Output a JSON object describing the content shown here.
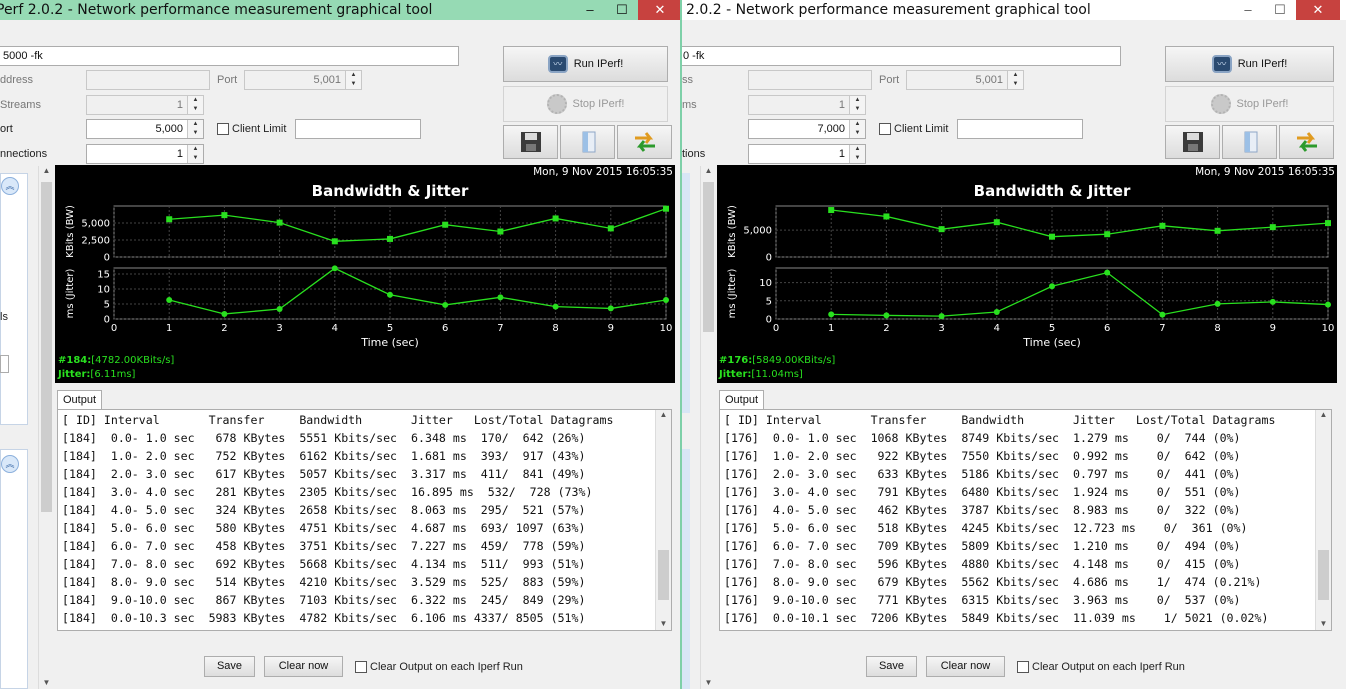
{
  "colors": {
    "plot_line": "#29e01f",
    "plot_bg": "#000000",
    "grid": "#444444"
  },
  "windows": [
    {
      "title": "Perf 2.0.2 - Network performance measurement graphical tool",
      "window_buttons": {
        "minimize": "–",
        "maximize": "☐",
        "close": "✕"
      },
      "command_line": "5000 -fk",
      "address_label": "ddress",
      "port_label": "Port",
      "port_value": "5,001",
      "streams_label": "Streams",
      "streams_value": "1",
      "listen_port_label": "ort",
      "listen_port_value": "5,000",
      "client_limit_label": "Client Limit",
      "connections_label": "nnections",
      "connections_value": "1",
      "run_label": "Run IPerf!",
      "stop_label": "Stop IPerf!",
      "timestamp": "Mon, 9 Nov 2015 16:05:35",
      "side_label": "ls",
      "readout_id_key": "#184:",
      "readout_id_val": "[4782.00KBits/s]",
      "readout_jitter_key": "Jitter:",
      "readout_jitter_val": "[6.11ms]",
      "output_tab": "Output",
      "output_lines": [
        "[ ID] Interval       Transfer     Bandwidth       Jitter   Lost/Total Datagrams",
        "[184]  0.0- 1.0 sec   678 KBytes  5551 Kbits/sec  6.348 ms  170/  642 (26%)",
        "[184]  1.0- 2.0 sec   752 KBytes  6162 Kbits/sec  1.681 ms  393/  917 (43%)",
        "[184]  2.0- 3.0 sec   617 KBytes  5057 Kbits/sec  3.317 ms  411/  841 (49%)",
        "[184]  3.0- 4.0 sec   281 KBytes  2305 Kbits/sec  16.895 ms  532/  728 (73%)",
        "[184]  4.0- 5.0 sec   324 KBytes  2658 Kbits/sec  8.063 ms  295/  521 (57%)",
        "[184]  5.0- 6.0 sec   580 KBytes  4751 Kbits/sec  4.687 ms  693/ 1097 (63%)",
        "[184]  6.0- 7.0 sec   458 KBytes  3751 Kbits/sec  7.227 ms  459/  778 (59%)",
        "[184]  7.0- 8.0 sec   692 KBytes  5668 Kbits/sec  4.134 ms  511/  993 (51%)",
        "[184]  8.0- 9.0 sec   514 KBytes  4210 Kbits/sec  3.529 ms  525/  883 (59%)",
        "[184]  9.0-10.0 sec   867 KBytes  7103 Kbits/sec  6.322 ms  245/  849 (29%)",
        "[184]  0.0-10.3 sec  5983 KBytes  4782 Kbits/sec  6.106 ms 4337/ 8505 (51%)"
      ],
      "save_label": "Save",
      "clear_label": "Clear now",
      "clear_each_label": "Clear Output on each Iperf Run"
    },
    {
      "title": "2.0.2 - Network performance measurement graphical tool",
      "window_buttons": {
        "minimize": "–",
        "maximize": "☐",
        "close": "✕"
      },
      "command_line": "0 -fk",
      "address_label": "ss",
      "port_label": "Port",
      "port_value": "5,001",
      "streams_label": "ms",
      "streams_value": "1",
      "listen_port_label": "",
      "listen_port_value": "7,000",
      "client_limit_label": "Client Limit",
      "connections_label": "tions",
      "connections_value": "1",
      "run_label": "Run IPerf!",
      "stop_label": "Stop IPerf!",
      "timestamp": "Mon, 9 Nov 2015 16:05:35",
      "side_label": "",
      "readout_id_key": "#176:",
      "readout_id_val": "[5849.00KBits/s]",
      "readout_jitter_key": "Jitter:",
      "readout_jitter_val": "[11.04ms]",
      "output_tab": "Output",
      "output_lines": [
        "[ ID] Interval       Transfer     Bandwidth       Jitter   Lost/Total Datagrams",
        "[176]  0.0- 1.0 sec  1068 KBytes  8749 Kbits/sec  1.279 ms    0/  744 (0%)",
        "[176]  1.0- 2.0 sec   922 KBytes  7550 Kbits/sec  0.992 ms    0/  642 (0%)",
        "[176]  2.0- 3.0 sec   633 KBytes  5186 Kbits/sec  0.797 ms    0/  441 (0%)",
        "[176]  3.0- 4.0 sec   791 KBytes  6480 Kbits/sec  1.924 ms    0/  551 (0%)",
        "[176]  4.0- 5.0 sec   462 KBytes  3787 Kbits/sec  8.983 ms    0/  322 (0%)",
        "[176]  5.0- 6.0 sec   518 KBytes  4245 Kbits/sec  12.723 ms    0/  361 (0%)",
        "[176]  6.0- 7.0 sec   709 KBytes  5809 Kbits/sec  1.210 ms    0/  494 (0%)",
        "[176]  7.0- 8.0 sec   596 KBytes  4880 Kbits/sec  4.148 ms    0/  415 (0%)",
        "[176]  8.0- 9.0 sec   679 KBytes  5562 Kbits/sec  4.686 ms    1/  474 (0.21%)",
        "[176]  9.0-10.0 sec   771 KBytes  6315 Kbits/sec  3.963 ms    0/  537 (0%)",
        "[176]  0.0-10.1 sec  7206 KBytes  5849 Kbits/sec  11.039 ms    1/ 5021 (0.02%)"
      ],
      "save_label": "Save",
      "clear_label": "Clear now",
      "clear_each_label": "Clear Output on each Iperf Run"
    }
  ],
  "chart_data": [
    {
      "type": "line",
      "title": "Bandwidth & Jitter",
      "xlabel": "Time (sec)",
      "xlim": [
        0,
        10
      ],
      "x_ticks": [
        "0",
        "1",
        "2",
        "3",
        "4",
        "5",
        "6",
        "7",
        "8",
        "9",
        "10"
      ],
      "grid": true,
      "panels": [
        {
          "ylabel": "KBits (BW)",
          "ylim": [
            0,
            7500
          ],
          "y_ticks": [
            "0",
            "2,500",
            "5,000"
          ],
          "y_tick_values": [
            0,
            2500,
            5000
          ],
          "series": [
            {
              "x": [
                1,
                2,
                3,
                4,
                5,
                6,
                7,
                8,
                9,
                10
              ],
              "values": [
                5551,
                6162,
                5057,
                2305,
                2658,
                4751,
                3751,
                5668,
                4210,
                7103
              ]
            }
          ]
        },
        {
          "ylabel": "ms (Jitter)",
          "ylim": [
            0,
            17
          ],
          "y_ticks": [
            "0",
            "5",
            "10",
            "15"
          ],
          "y_tick_values": [
            0,
            5,
            10,
            15
          ],
          "series": [
            {
              "x": [
                1,
                2,
                3,
                4,
                5,
                6,
                7,
                8,
                9,
                10
              ],
              "values": [
                6.348,
                1.681,
                3.317,
                16.895,
                8.063,
                4.687,
                7.227,
                4.134,
                3.529,
                6.322
              ]
            }
          ]
        }
      ]
    },
    {
      "type": "line",
      "title": "Bandwidth & Jitter",
      "xlabel": "Time (sec)",
      "xlim": [
        0,
        10
      ],
      "x_ticks": [
        "0",
        "1",
        "2",
        "3",
        "4",
        "5",
        "6",
        "7",
        "8",
        "9",
        "10"
      ],
      "grid": true,
      "panels": [
        {
          "ylabel": "KBits (BW)",
          "ylim": [
            0,
            9500
          ],
          "y_ticks": [
            "0",
            "5,000"
          ],
          "y_tick_values": [
            0,
            5000
          ],
          "series": [
            {
              "x": [
                1,
                2,
                3,
                4,
                5,
                6,
                7,
                8,
                9,
                10
              ],
              "values": [
                8749,
                7550,
                5186,
                6480,
                3787,
                4245,
                5809,
                4880,
                5562,
                6315
              ]
            }
          ]
        },
        {
          "ylabel": "ms (Jitter)",
          "ylim": [
            0,
            14
          ],
          "y_ticks": [
            "0",
            "5",
            "10"
          ],
          "y_tick_values": [
            0,
            5,
            10
          ],
          "series": [
            {
              "x": [
                1,
                2,
                3,
                4,
                5,
                6,
                7,
                8,
                9,
                10
              ],
              "values": [
                1.279,
                0.992,
                0.797,
                1.924,
                8.983,
                12.723,
                1.21,
                4.148,
                4.686,
                3.963
              ]
            }
          ]
        }
      ]
    }
  ]
}
